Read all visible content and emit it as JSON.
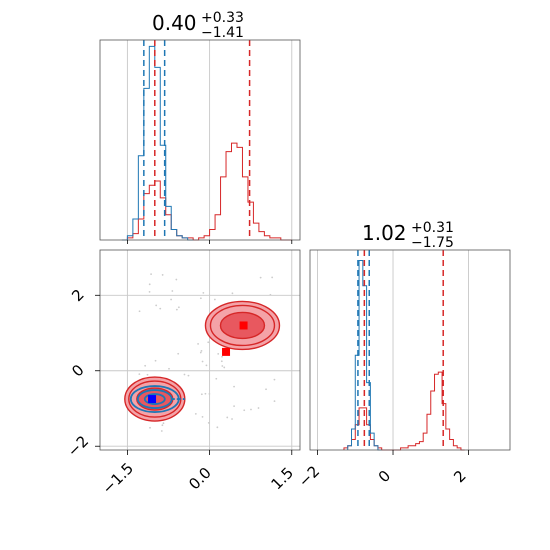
{
  "colors": {
    "red": "#d62728",
    "blue": "#1f77b4",
    "red_light": "#f4a3a8",
    "red_mid": "#e8585f",
    "marker_blue": "#0000ff",
    "marker_red": "#ff0000"
  },
  "titles": {
    "p1": {
      "value": "0.40",
      "plus": "+0.33",
      "minus": "−1.41"
    },
    "p2": {
      "value": "1.02",
      "plus": "+0.31",
      "minus": "−1.75"
    }
  },
  "chart_data": [
    {
      "type": "histogram",
      "panel": "param1-marginal",
      "title": "0.40 (+0.33 / −1.41)",
      "xlim": [
        -2.0,
        1.65
      ],
      "series": [
        {
          "name": "",
          "color": "#d62728",
          "x": [
            -1.55,
            -1.45,
            -1.35,
            -1.25,
            -1.15,
            -1.05,
            -0.95,
            -0.85,
            -0.75,
            -0.65,
            -0.55,
            -0.45,
            -0.35,
            -0.25,
            -0.15,
            -0.05,
            0.05,
            0.15,
            0.25,
            0.35,
            0.45,
            0.55,
            0.65,
            0.75,
            0.85,
            0.95,
            1.05,
            1.15,
            1.25,
            1.35,
            1.45
          ],
          "y": [
            0,
            0.01,
            0.03,
            0.1,
            0.22,
            0.26,
            0.28,
            0.2,
            0.12,
            0.05,
            0.02,
            0.01,
            0.01,
            0,
            0.01,
            0.02,
            0.05,
            0.12,
            0.3,
            0.42,
            0.46,
            0.44,
            0.3,
            0.18,
            0.08,
            0.04,
            0.02,
            0.01,
            0.01,
            0,
            0
          ]
        },
        {
          "name": "",
          "color": "#1f77b4",
          "x": [
            -1.55,
            -1.45,
            -1.35,
            -1.25,
            -1.15,
            -1.05,
            -0.95,
            -0.85,
            -0.75,
            -0.65,
            -0.55,
            -0.45,
            -0.35
          ],
          "y": [
            0,
            0.02,
            0.1,
            0.4,
            0.72,
            0.92,
            0.82,
            0.45,
            0.16,
            0.05,
            0.02,
            0.01,
            0
          ]
        }
      ],
      "vlines_blue": [
        -1.2,
        -0.82
      ],
      "vlines_red": [
        -1.0,
        0.73
      ]
    },
    {
      "type": "contour",
      "panel": "joint",
      "xlim": [
        -2.0,
        1.65
      ],
      "ylim": [
        -2.1,
        3.2
      ],
      "x_ticks": [
        "−1.5",
        "0.0",
        "1.5"
      ],
      "x_tick_values": [
        -1.5,
        0.0,
        1.5
      ],
      "y_ticks": [
        "−2",
        "0",
        "2"
      ],
      "y_tick_values": [
        -2,
        0,
        2
      ],
      "grid": true,
      "red_modes": [
        {
          "x": -1.0,
          "y": -0.75
        },
        {
          "x": 0.6,
          "y": 1.2
        }
      ],
      "blue_mode": {
        "x": -1.0,
        "y": -0.75
      },
      "markers": [
        {
          "color": "#0000ff",
          "x": -1.05,
          "y": -0.75
        },
        {
          "color": "#ff0000",
          "x": 0.62,
          "y": 1.2
        },
        {
          "color": "#ff0000",
          "x": 0.3,
          "y": 0.5
        }
      ]
    },
    {
      "type": "histogram",
      "panel": "param2-marginal",
      "title": "1.02 (+0.31 / −1.75)",
      "xlim": [
        -2.2,
        3.1
      ],
      "x_ticks": [
        "−2",
        "0",
        "2"
      ],
      "x_tick_values": [
        -2,
        0,
        2
      ],
      "series": [
        {
          "name": "",
          "color": "#d62728",
          "x": [
            -1.25,
            -1.15,
            -1.05,
            -0.95,
            -0.85,
            -0.75,
            -0.65,
            -0.55,
            -0.45,
            -0.35,
            -0.25,
            -0.15,
            -0.05,
            0.05,
            0.15,
            0.25,
            0.35,
            0.45,
            0.55,
            0.65,
            0.75,
            0.85,
            0.95,
            1.05,
            1.15,
            1.25,
            1.35,
            1.45,
            1.55,
            1.65,
            1.75,
            1.85
          ],
          "y": [
            0.01,
            0.02,
            0.05,
            0.12,
            0.2,
            0.2,
            0.12,
            0.05,
            0.02,
            0.01,
            0,
            0,
            0,
            0,
            0,
            0.01,
            0.01,
            0.02,
            0.02,
            0.03,
            0.04,
            0.08,
            0.17,
            0.28,
            0.36,
            0.37,
            0.22,
            0.1,
            0.05,
            0.02,
            0.01,
            0
          ]
        },
        {
          "name": "",
          "color": "#1f77b4",
          "x": [
            -1.15,
            -1.05,
            -0.95,
            -0.85,
            -0.75,
            -0.65,
            -0.55,
            -0.45,
            -0.35
          ],
          "y": [
            0.02,
            0.1,
            0.45,
            0.9,
            0.78,
            0.32,
            0.08,
            0.02,
            0
          ]
        }
      ],
      "vlines_blue": [
        -0.93,
        -0.63
      ],
      "vlines_red": [
        -0.76,
        1.33
      ]
    }
  ]
}
